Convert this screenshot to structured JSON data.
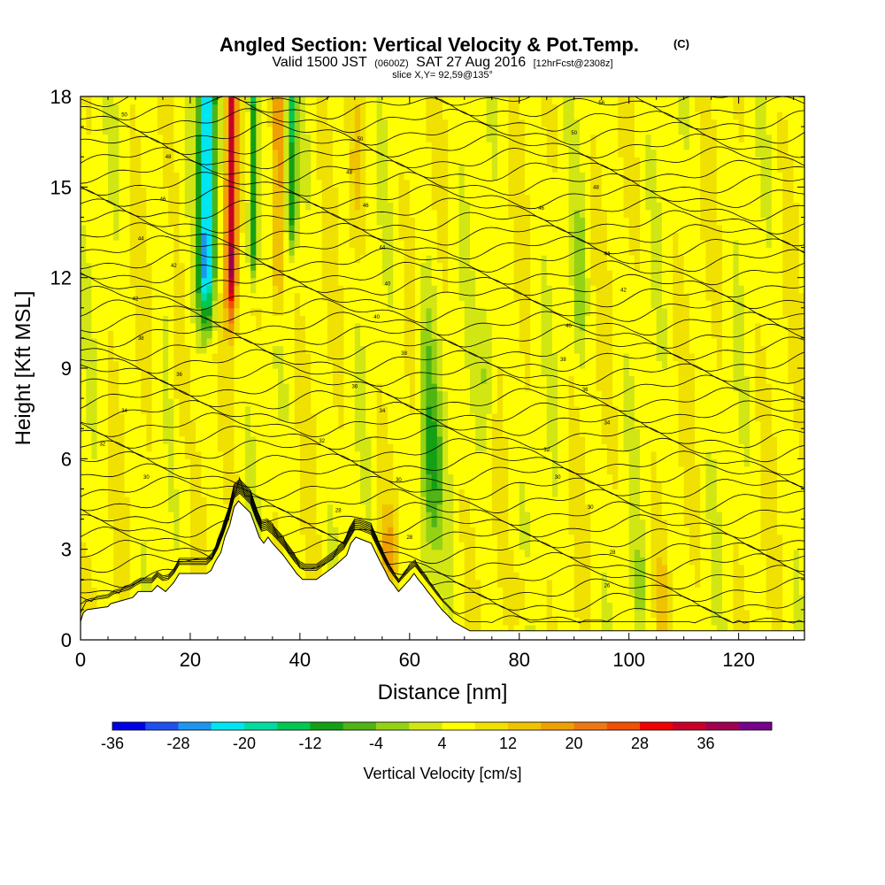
{
  "chart_data": {
    "type": "heatmap",
    "title": "Angled Section: Vertical Velocity & Pot.Temp.",
    "title_units": "(C)",
    "subtitle_parts": [
      "Valid 1500 JST",
      "(0600Z)",
      "SAT 27 Aug 2016",
      "[12hrFcst@2308z]"
    ],
    "slice_label": "slice X,Y= 92,59@135°",
    "xlabel": "Distance [nm]",
    "ylabel": "Height [Kft MSL]",
    "xlim": [
      0,
      132
    ],
    "ylim": [
      0,
      18
    ],
    "x_ticks": [
      "0",
      "20",
      "40",
      "60",
      "80",
      "100",
      "120"
    ],
    "y_ticks": [
      "0",
      "3",
      "6",
      "9",
      "12",
      "15",
      "18"
    ],
    "colorbar": {
      "label": "Vertical Velocity [cm/s]",
      "tick_labels": [
        "-36",
        "-28",
        "-20",
        "-12",
        "-4",
        "4",
        "12",
        "20",
        "28",
        "36"
      ],
      "colors": [
        "#0000e6",
        "#1e50f0",
        "#1e96f0",
        "#00e6f0",
        "#00dca0",
        "#00c850",
        "#14a014",
        "#50b414",
        "#96d214",
        "#d2e614",
        "#ffff00",
        "#f0e100",
        "#f0c300",
        "#f0a000",
        "#f07814",
        "#f05000",
        "#f00000",
        "#c80028",
        "#a00050",
        "#78008c"
      ]
    },
    "terrain_profile": {
      "distance_nm": [
        0,
        0.5,
        1.2,
        5,
        5.5,
        9.5,
        10.5,
        13,
        14,
        15.5,
        17,
        18,
        23,
        23.8,
        24.6,
        25.6,
        26.3,
        27.2,
        28,
        28.8,
        31,
        31.8,
        32.6,
        33.4,
        34.2,
        35,
        36,
        37,
        37.8,
        38.6,
        39.4,
        40.5,
        43,
        44.5,
        46,
        48.5,
        49.3,
        50.2,
        53,
        53.8,
        54.6,
        55.5,
        56.3,
        57.2,
        58,
        59,
        60,
        60.8,
        61.6,
        62.5,
        63.3,
        64.2,
        65,
        65.9,
        67,
        68,
        70,
        71,
        132
      ],
      "height_kft": [
        0.6,
        0.9,
        1.0,
        1.1,
        1.2,
        1.4,
        1.6,
        1.6,
        1.8,
        1.6,
        1.9,
        2.2,
        2.2,
        2.3,
        2.6,
        2.9,
        3.4,
        3.8,
        4.4,
        4.6,
        4.2,
        3.8,
        3.4,
        3.2,
        3.4,
        3.2,
        3.0,
        2.8,
        2.6,
        2.4,
        2.2,
        2.0,
        2.0,
        2.2,
        2.4,
        2.8,
        3.2,
        3.4,
        3.2,
        2.9,
        2.6,
        2.3,
        2.0,
        1.8,
        1.6,
        1.8,
        2.0,
        2.2,
        2.0,
        1.8,
        1.6,
        1.4,
        1.2,
        1.0,
        0.8,
        0.6,
        0.4,
        0.3,
        0.3
      ]
    },
    "contour_labels": [
      {
        "value": "50",
        "x": 8,
        "y": 17.4
      },
      {
        "value": "48",
        "x": 16,
        "y": 16.0
      },
      {
        "value": "46",
        "x": 15,
        "y": 14.6
      },
      {
        "value": "44",
        "x": 11,
        "y": 13.3
      },
      {
        "value": "42",
        "x": 17,
        "y": 12.4
      },
      {
        "value": "42",
        "x": 10,
        "y": 11.3
      },
      {
        "value": "38",
        "x": 11,
        "y": 10.0
      },
      {
        "value": "36",
        "x": 18,
        "y": 8.8
      },
      {
        "value": "34",
        "x": 8,
        "y": 7.6
      },
      {
        "value": "32",
        "x": 4,
        "y": 6.5
      },
      {
        "value": "30",
        "x": 12,
        "y": 5.4
      },
      {
        "value": "50",
        "x": 51,
        "y": 16.6
      },
      {
        "value": "48",
        "x": 49,
        "y": 15.5
      },
      {
        "value": "46",
        "x": 52,
        "y": 14.4
      },
      {
        "value": "44",
        "x": 55,
        "y": 13.0
      },
      {
        "value": "40",
        "x": 56,
        "y": 11.8
      },
      {
        "value": "40",
        "x": 54,
        "y": 10.7
      },
      {
        "value": "38",
        "x": 59,
        "y": 9.5
      },
      {
        "value": "36",
        "x": 50,
        "y": 8.4
      },
      {
        "value": "34",
        "x": 55,
        "y": 7.6
      },
      {
        "value": "32",
        "x": 44,
        "y": 6.6
      },
      {
        "value": "30",
        "x": 58,
        "y": 5.3
      },
      {
        "value": "28",
        "x": 47,
        "y": 4.3
      },
      {
        "value": "28",
        "x": 60,
        "y": 3.4
      },
      {
        "value": "56",
        "x": 95,
        "y": 17.8
      },
      {
        "value": "50",
        "x": 90,
        "y": 16.8
      },
      {
        "value": "48",
        "x": 94,
        "y": 15.0
      },
      {
        "value": "46",
        "x": 84,
        "y": 14.3
      },
      {
        "value": "44",
        "x": 96,
        "y": 12.8
      },
      {
        "value": "42",
        "x": 99,
        "y": 11.6
      },
      {
        "value": "40",
        "x": 89,
        "y": 10.4
      },
      {
        "value": "38",
        "x": 88,
        "y": 9.3
      },
      {
        "value": "36",
        "x": 92,
        "y": 8.3
      },
      {
        "value": "34",
        "x": 96,
        "y": 7.2
      },
      {
        "value": "32",
        "x": 85,
        "y": 6.3
      },
      {
        "value": "30",
        "x": 87,
        "y": 5.4
      },
      {
        "value": "30",
        "x": 93,
        "y": 4.4
      },
      {
        "value": "28",
        "x": 97,
        "y": 2.9
      },
      {
        "value": "26",
        "x": 96,
        "y": 1.8
      }
    ],
    "grid": false,
    "colorbar_position": "bottom"
  }
}
